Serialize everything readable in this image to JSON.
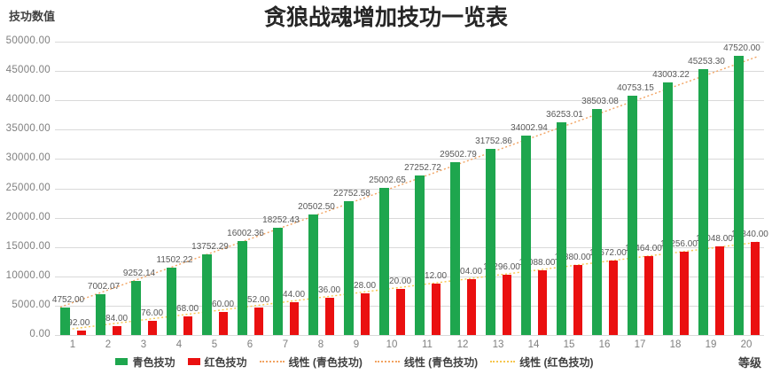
{
  "title": "贪狼战魂增加技功一览表",
  "y_axis_title": "技功数值",
  "x_axis_title": "等级",
  "colors": {
    "green_series": "#1ea64e",
    "red_series": "#ea1010",
    "green_trendline": "#f2a361",
    "red_trendline": "#f6c74f",
    "gridline": "#d9d9d9",
    "tick_text": "#7f7f7f",
    "label_text": "#595959"
  },
  "legend": [
    {
      "label": "青色技功",
      "type": "bar",
      "color": "#1ea64e"
    },
    {
      "label": "红色技功",
      "type": "bar",
      "color": "#ea1010"
    },
    {
      "label": "线性 (青色技功)",
      "type": "line",
      "color": "#f2a361"
    },
    {
      "label": "线性 (青色技功)",
      "type": "line",
      "color": "#f2a361"
    },
    {
      "label": "线性 (红色技功)",
      "type": "line",
      "color": "#f6c74f"
    }
  ],
  "chart_data": {
    "type": "bar",
    "title": "贪狼战魂增加技功一览表",
    "xlabel": "等级",
    "ylabel": "技功数值",
    "categories": [
      1,
      2,
      3,
      4,
      5,
      6,
      7,
      8,
      9,
      10,
      11,
      12,
      13,
      14,
      15,
      16,
      17,
      18,
      19,
      20
    ],
    "series": [
      {
        "name": "青色技功",
        "color": "#1ea64e",
        "values": [
          4752.0,
          7002.07,
          9252.14,
          11502.22,
          13752.29,
          16002.36,
          18252.43,
          20502.5,
          22752.58,
          25002.65,
          27252.72,
          29502.79,
          31752.86,
          34002.94,
          36253.01,
          38503.08,
          40753.15,
          43003.22,
          45253.3,
          47520.0
        ]
      },
      {
        "name": "红色技功",
        "color": "#ea1010",
        "values": [
          792.0,
          1584.0,
          2376.0,
          3168.0,
          3960.0,
          4752.0,
          5544.0,
          6336.0,
          7128.0,
          7920.0,
          8712.0,
          9504.0,
          10296.0,
          11088.0,
          11880.0,
          12672.0,
          13464.0,
          14256.0,
          15048.0,
          15840.0
        ]
      }
    ],
    "trendlines": [
      {
        "name": "线性 (青色技功)",
        "series_index": 0,
        "color": "#f2a361"
      },
      {
        "name": "线性 (红色技功)",
        "series_index": 1,
        "color": "#f6c74f"
      }
    ],
    "ylim": [
      0,
      50000
    ],
    "y_ticks": [
      "0.00",
      "5000.00",
      "10000.00",
      "15000.00",
      "20000.00",
      "25000.00",
      "30000.00",
      "35000.00",
      "40000.00",
      "45000.00",
      "50000.00"
    ],
    "grid": true,
    "data_labels": true,
    "legend_position": "bottom"
  }
}
